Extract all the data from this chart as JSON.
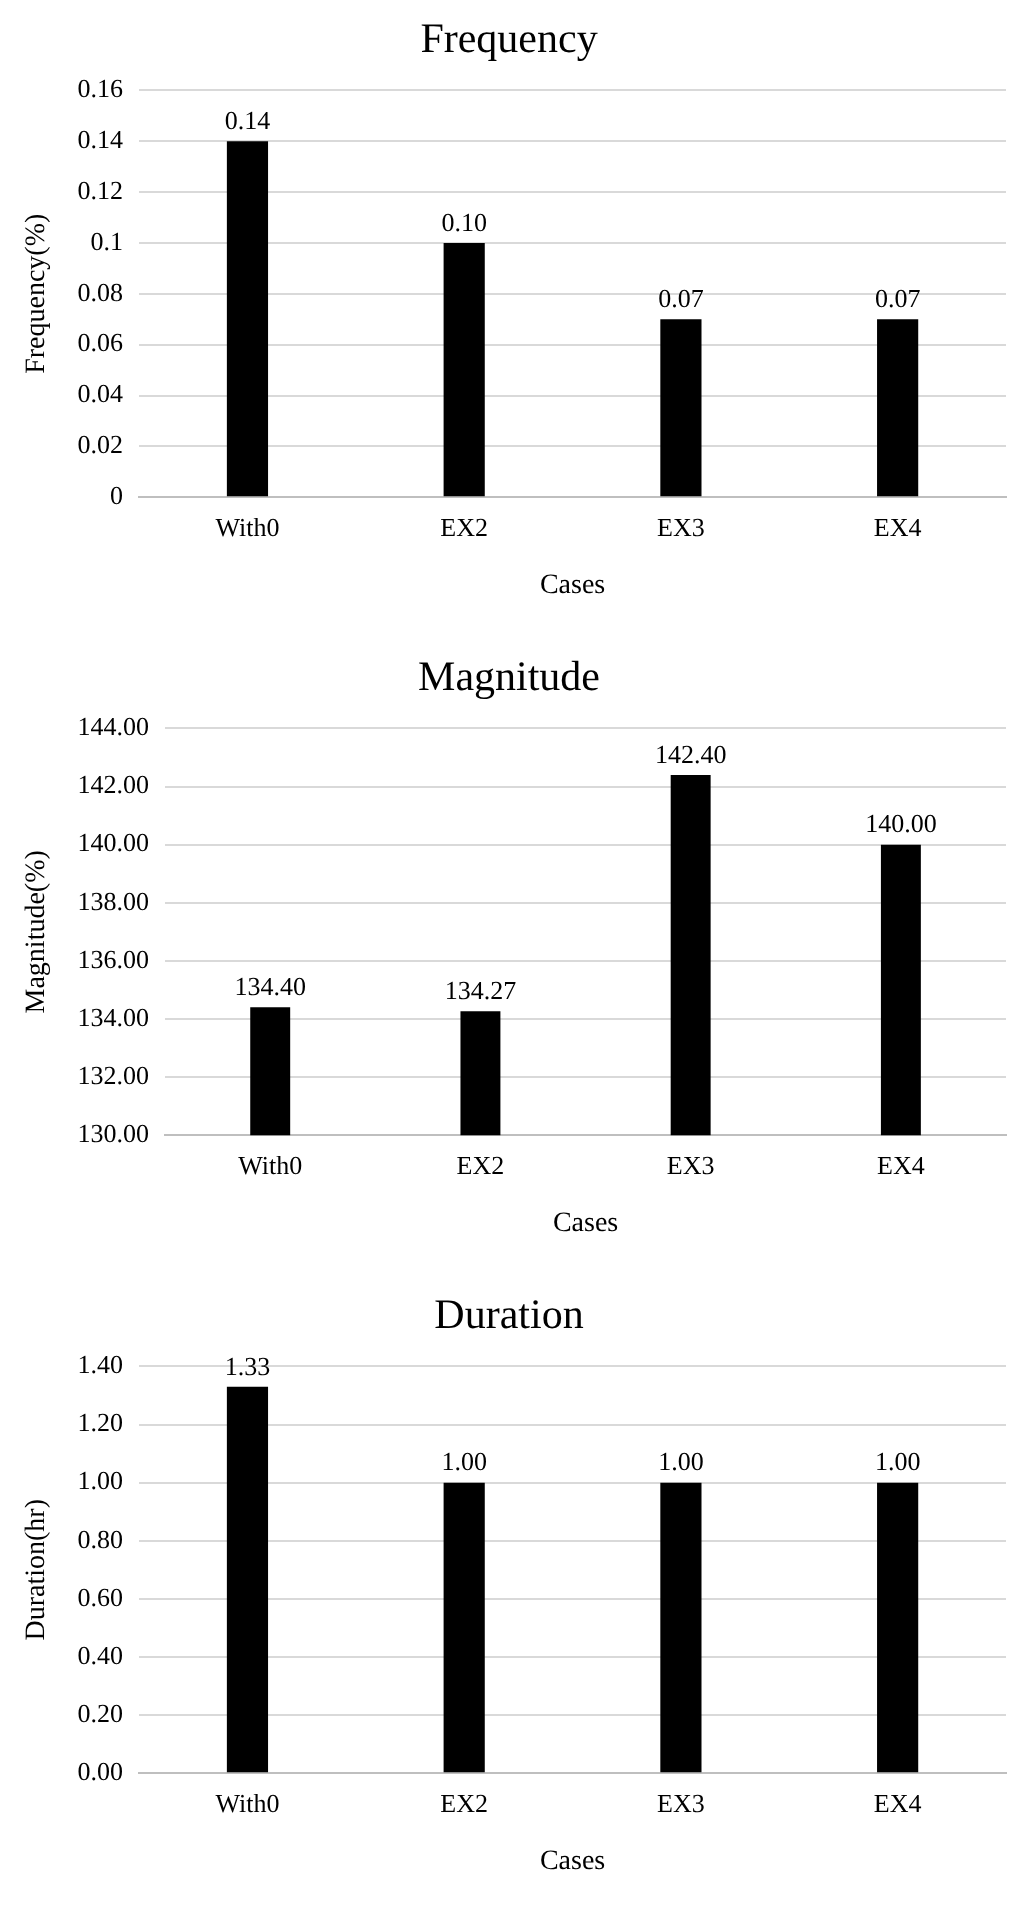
{
  "chart_data": [
    {
      "type": "bar",
      "title": "Frequency",
      "xlabel": "Cases",
      "ylabel": "Frequency(%)",
      "categories": [
        "With0",
        "EX2",
        "EX3",
        "EX4"
      ],
      "values": [
        0.14,
        0.1,
        0.07,
        0.07
      ],
      "value_labels": [
        "0.14",
        "0.10",
        "0.07",
        "0.07"
      ],
      "color": "#000000",
      "ylim": [
        0,
        0.16
      ],
      "yticks": [
        0,
        0.02,
        0.04,
        0.06,
        0.08,
        0.1,
        0.12,
        0.14,
        0.16
      ],
      "grid": "y"
    },
    {
      "type": "bar",
      "title": "Magnitude",
      "xlabel": "Cases",
      "ylabel": "Magnitude(%)",
      "categories": [
        "With0",
        "EX2",
        "EX3",
        "EX4"
      ],
      "values": [
        134.4,
        134.27,
        142.4,
        140
      ],
      "value_labels": [
        "134.40",
        "134.27",
        "142.40",
        "140.00"
      ],
      "color": "#000000",
      "ylim": [
        130,
        144
      ],
      "yticks": [
        {
          "value": 130,
          "label": "130.00"
        },
        {
          "value": 132,
          "label": "132.00"
        },
        {
          "value": 134,
          "label": "134.00"
        },
        {
          "value": 136,
          "label": "136.00"
        },
        {
          "value": 138,
          "label": "138.00"
        },
        {
          "value": 140,
          "label": "140.00"
        },
        {
          "value": 142,
          "label": "142.00"
        },
        {
          "value": 144,
          "label": "144.00"
        }
      ],
      "grid": "y"
    },
    {
      "type": "bar",
      "title": "Duration",
      "xlabel": "Cases",
      "ylabel": "Duration(hr)",
      "categories": [
        "With0",
        "EX2",
        "EX3",
        "EX4"
      ],
      "values": [
        1.33,
        1,
        1,
        1
      ],
      "value_labels": [
        "1.33",
        "1.00",
        "1.00",
        "1.00"
      ],
      "color": "#000000",
      "ylim": [
        0,
        1.4
      ],
      "yticks": [
        {
          "value": 0,
          "label": "0.00"
        },
        {
          "value": 0.2,
          "label": "0.20"
        },
        {
          "value": 0.4,
          "label": "0.40"
        },
        {
          "value": 0.6,
          "label": "0.60"
        },
        {
          "value": 0.8,
          "label": "0.80"
        },
        {
          "value": 1,
          "label": "1.00"
        },
        {
          "value": 1.2,
          "label": "1.20"
        },
        {
          "value": 1.4,
          "label": "1.40"
        }
      ],
      "grid": "y"
    }
  ]
}
